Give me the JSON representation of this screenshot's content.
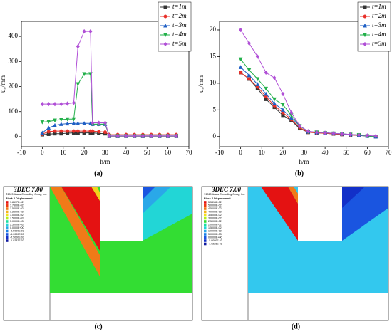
{
  "chart_data": [
    {
      "type": "line",
      "caption": "(a)",
      "xlabel": "h/m",
      "ylabel": "u",
      "ylabel_sub": "x",
      "ylabel_unit": "/mm",
      "x": [
        0,
        3,
        6,
        9,
        12,
        15,
        17,
        20,
        23,
        24,
        27,
        30,
        32,
        36,
        40,
        44,
        48,
        52,
        56,
        60,
        64
      ],
      "xlim": [
        -10,
        70
      ],
      "xticks": [
        -10,
        0,
        10,
        20,
        30,
        40,
        50,
        60,
        70
      ],
      "ylim": [
        -40,
        460
      ],
      "yticks": [
        0,
        100,
        200,
        300,
        400
      ],
      "legend": "top-right",
      "series": [
        {
          "name": "t=1m",
          "color": "#333333",
          "marker": "square",
          "values": [
            8,
            10,
            12,
            12,
            14,
            15,
            15,
            15,
            15,
            15,
            13,
            12,
            2,
            2,
            2,
            2,
            2,
            2,
            2,
            2,
            2
          ]
        },
        {
          "name": "t=2m",
          "color": "#e8302a",
          "marker": "circle",
          "values": [
            10,
            20,
            22,
            22,
            22,
            22,
            22,
            22,
            22,
            22,
            20,
            18,
            8,
            8,
            8,
            8,
            8,
            8,
            8,
            8,
            8
          ]
        },
        {
          "name": "t=3m",
          "color": "#1f5fc4",
          "marker": "triangle-up",
          "values": [
            15,
            35,
            45,
            50,
            52,
            53,
            53,
            53,
            53,
            50,
            50,
            50,
            3,
            3,
            3,
            3,
            3,
            3,
            3,
            3,
            3
          ]
        },
        {
          "name": "t=4m",
          "color": "#22b04a",
          "marker": "triangle-down",
          "values": [
            58,
            60,
            65,
            68,
            70,
            70,
            210,
            250,
            250,
            50,
            50,
            50,
            3,
            3,
            3,
            3,
            3,
            3,
            3,
            3,
            3
          ]
        },
        {
          "name": "t=5m",
          "color": "#b04fd6",
          "marker": "diamond",
          "values": [
            130,
            130,
            130,
            130,
            132,
            135,
            360,
            420,
            420,
            55,
            55,
            55,
            3,
            3,
            3,
            3,
            3,
            3,
            3,
            3,
            3
          ]
        }
      ]
    },
    {
      "type": "line",
      "caption": "(b)",
      "xlabel": "h/m",
      "ylabel": "u",
      "ylabel_sub": "x",
      "ylabel_unit": "/mm",
      "x": [
        0,
        4,
        8,
        12,
        16,
        20,
        24,
        28,
        32,
        36,
        40,
        44,
        48,
        52,
        56,
        60,
        64
      ],
      "xlim": [
        -10,
        70
      ],
      "xticks": [
        -10,
        0,
        10,
        20,
        30,
        40,
        50,
        60,
        70
      ],
      "ylim": [
        -1.9,
        21.6
      ],
      "yticks": [
        0,
        5,
        10,
        15,
        20
      ],
      "legend": "top-right",
      "series": [
        {
          "name": "t=1m",
          "color": "#333333",
          "marker": "square",
          "values": [
            12,
            10.8,
            9,
            7,
            5.5,
            4,
            3,
            1.5,
            0.8,
            0.7,
            0.6,
            0.5,
            0.4,
            0.3,
            0.2,
            0.1,
            0
          ]
        },
        {
          "name": "t=2m",
          "color": "#e8302a",
          "marker": "circle",
          "values": [
            12,
            10.8,
            9.3,
            7.5,
            5.8,
            4.5,
            3.2,
            1.7,
            0.8,
            0.7,
            0.6,
            0.5,
            0.4,
            0.3,
            0.2,
            0.1,
            0
          ]
        },
        {
          "name": "t=3m",
          "color": "#1f5fc4",
          "marker": "triangle-up",
          "values": [
            13,
            11.5,
            9.8,
            8,
            6.2,
            5,
            3.5,
            2,
            0.9,
            0.8,
            0.7,
            0.6,
            0.5,
            0.4,
            0.2,
            0.1,
            0
          ]
        },
        {
          "name": "t=4m",
          "color": "#22b04a",
          "marker": "triangle-down",
          "values": [
            14.5,
            12.5,
            10.8,
            9,
            7,
            6,
            4,
            2,
            0.9,
            0.8,
            0.7,
            0.6,
            0.5,
            0.4,
            0.3,
            0.1,
            0
          ]
        },
        {
          "name": "t=5m",
          "color": "#b04fd6",
          "marker": "diamond",
          "values": [
            20,
            17.5,
            15,
            12,
            11,
            8,
            4.5,
            2,
            1,
            0.8,
            0.7,
            0.6,
            0.5,
            0.4,
            0.3,
            0.2,
            0.1
          ]
        }
      ]
    }
  ],
  "panels": [
    {
      "caption": "(c)",
      "software": "3DEC 7.00",
      "copyright": "©2020 Itasca Consulting Group, Inc.",
      "legend_title": "Block X Displacement",
      "legend_values": [
        "1.8617E-02",
        "1.7500E-02",
        "1.5000E-02",
        "1.2500E-02",
        "1.0000E-02",
        "7.5000E-03",
        "5.0000E-03",
        "2.5000E-03",
        "0.0000E+00",
        "-2.5000E-03",
        "-5.0000E-03",
        "-7.5000E-03",
        "-1.0232E-02"
      ]
    },
    {
      "caption": "(d)",
      "software": "3DEC 7.00",
      "copyright": "©2020 Itasca Consulting Group, Inc.",
      "legend_title": "Block X Displacement",
      "legend_values": [
        "5.5416E-02",
        "5.0000E-02",
        "4.5000E-02",
        "4.0000E-02",
        "3.5000E-02",
        "3.0000E-02",
        "2.5000E-02",
        "2.0000E-02",
        "1.5000E-02",
        "1.0000E-02",
        "5.0000E-03",
        "0.0000E+00",
        "-5.0000E-03",
        "-1.0226E-02"
      ]
    }
  ]
}
